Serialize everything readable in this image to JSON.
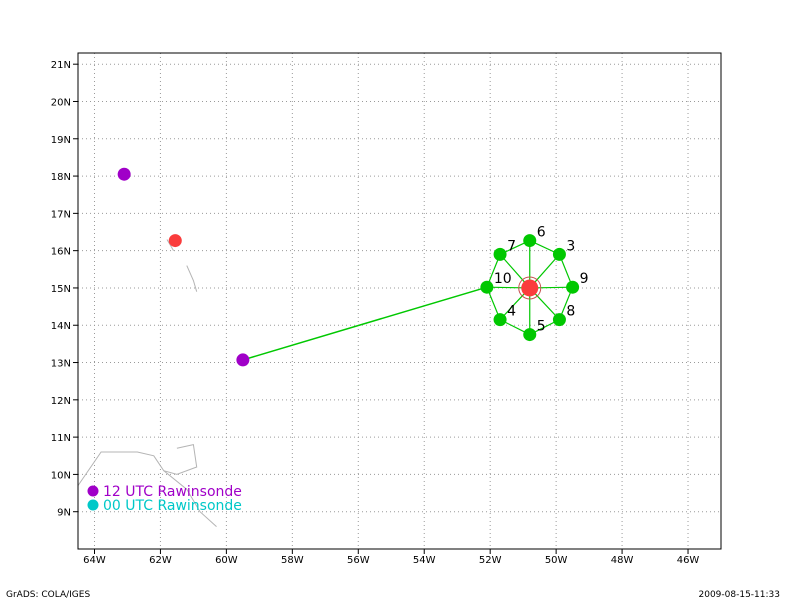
{
  "map": {
    "lon_range": [
      -64.5,
      -45.0
    ],
    "lat_range": [
      8.0,
      21.3
    ],
    "lon_ticks": [
      {
        "value": -64,
        "label": "64W"
      },
      {
        "value": -62,
        "label": "62W"
      },
      {
        "value": -60,
        "label": "60W"
      },
      {
        "value": -58,
        "label": "58W"
      },
      {
        "value": -56,
        "label": "56W"
      },
      {
        "value": -54,
        "label": "54W"
      },
      {
        "value": -52,
        "label": "52W"
      },
      {
        "value": -50,
        "label": "50W"
      },
      {
        "value": -48,
        "label": "48W"
      },
      {
        "value": -46,
        "label": "46W"
      }
    ],
    "lat_ticks": [
      {
        "value": 9,
        "label": "9N"
      },
      {
        "value": 10,
        "label": "10N"
      },
      {
        "value": 11,
        "label": "11N"
      },
      {
        "value": 12,
        "label": "12N"
      },
      {
        "value": 13,
        "label": "13N"
      },
      {
        "value": 14,
        "label": "14N"
      },
      {
        "value": 15,
        "label": "15N"
      },
      {
        "value": 16,
        "label": "16N"
      },
      {
        "value": 17,
        "label": "17N"
      },
      {
        "value": 18,
        "label": "18N"
      },
      {
        "value": 19,
        "label": "19N"
      },
      {
        "value": 20,
        "label": "20N"
      },
      {
        "value": 21,
        "label": "21N"
      }
    ],
    "grid": "dotted",
    "coastlines": [
      [
        [
          -64.5,
          9.7
        ],
        [
          -63.8,
          10.6
        ],
        [
          -62.7,
          10.6
        ],
        [
          -62.2,
          10.5
        ],
        [
          -61.9,
          10.1
        ],
        [
          -61.2,
          9.6
        ],
        [
          -60.8,
          9.0
        ],
        [
          -60.3,
          8.6
        ]
      ],
      [
        [
          -61.5,
          10.7
        ],
        [
          -61.0,
          10.8
        ],
        [
          -60.9,
          10.2
        ],
        [
          -61.5,
          10.0
        ],
        [
          -61.9,
          10.1
        ]
      ],
      [
        [
          -61.8,
          16.3
        ],
        [
          -61.6,
          16.0
        ]
      ],
      [
        [
          -61.2,
          15.6
        ],
        [
          -61.0,
          15.2
        ],
        [
          -60.9,
          14.9
        ]
      ]
    ],
    "coast_color": "#b4b4b4"
  },
  "chart_data": {
    "type": "scatter",
    "points": [
      {
        "lon": -63.1,
        "lat": 18.05,
        "color": "#a000c8",
        "kind": "12 UTC Rawinsonde"
      },
      {
        "lon": -59.5,
        "lat": 13.07,
        "color": "#a000c8",
        "kind": "12 UTC Rawinsonde"
      },
      {
        "lon": -61.55,
        "lat": 16.27,
        "color": "#fa3c3c",
        "kind": "center"
      },
      {
        "lon": -50.8,
        "lat": 15.0,
        "color": "#fa3c3c",
        "kind": "center"
      }
    ],
    "dropsondes": [
      {
        "label": "3",
        "lon": -49.9,
        "lat": 15.9
      },
      {
        "label": "4",
        "lon": -51.7,
        "lat": 14.15
      },
      {
        "label": "5",
        "lon": -50.8,
        "lat": 13.75
      },
      {
        "label": "6",
        "lon": -50.8,
        "lat": 16.27
      },
      {
        "label": "7",
        "lon": -51.7,
        "lat": 15.9
      },
      {
        "label": "8",
        "lon": -49.9,
        "lat": 14.15
      },
      {
        "label": "9",
        "lon": -49.5,
        "lat": 15.02
      },
      {
        "label": "10",
        "lon": -52.1,
        "lat": 15.02
      }
    ],
    "track_line": [
      [
        -59.5,
        13.07
      ],
      [
        -52.1,
        15.02
      ]
    ],
    "track_color": "#00c800",
    "center_marker_color": "#c85050"
  },
  "legend": {
    "items": [
      {
        "label": "12 UTC Rawinsonde",
        "color": "#a000c8"
      },
      {
        "label": "00 UTC Rawinsonde",
        "color": "#00c8c8"
      }
    ]
  },
  "footer": {
    "left": "GrADS: COLA/IGES",
    "right": "2009-08-15-11:33"
  }
}
